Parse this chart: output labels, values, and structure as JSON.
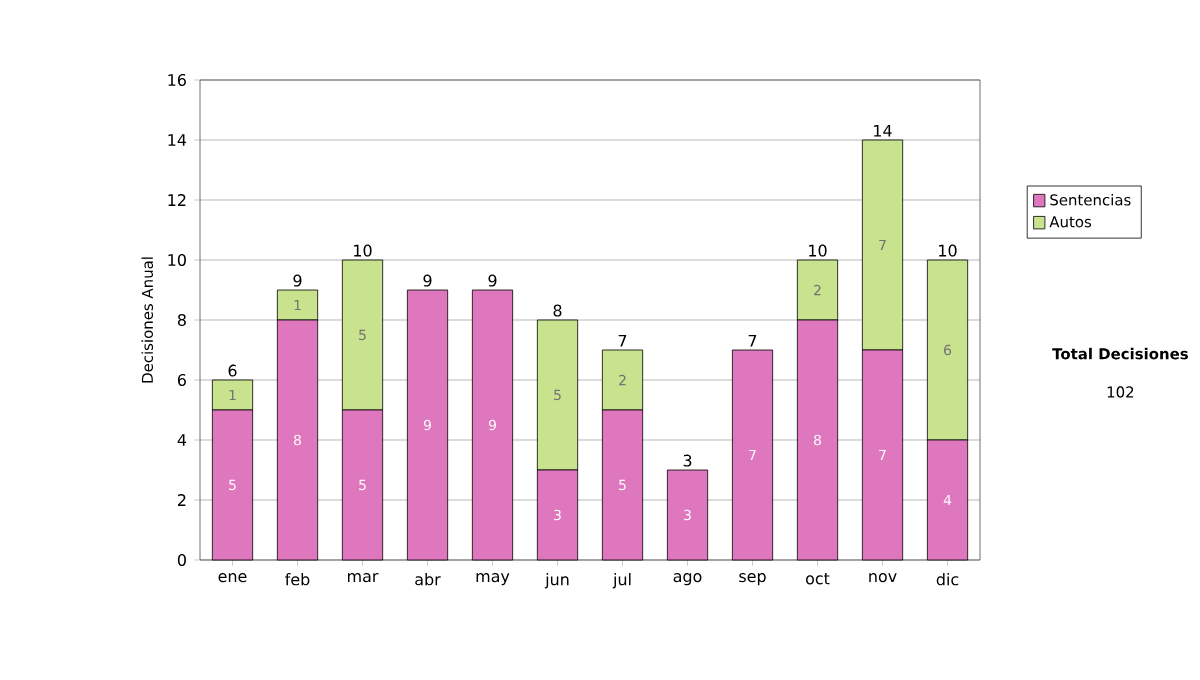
{
  "chart_data": {
    "type": "bar",
    "stacked": true,
    "ylabel": "Decisiones Anual",
    "categories": [
      "ene",
      "feb",
      "mar",
      "abr",
      "may",
      "jun",
      "jul",
      "ago",
      "sep",
      "oct",
      "nov",
      "dic"
    ],
    "series": [
      {
        "name": "Sentencias",
        "color": "#df77be",
        "values": [
          5,
          8,
          5,
          9,
          9,
          3,
          5,
          3,
          7,
          8,
          7,
          4
        ],
        "value_labels": [
          "5",
          "8",
          "5",
          "9",
          "9",
          "3",
          "5",
          "3",
          "7",
          "8",
          "7",
          "4"
        ]
      },
      {
        "name": "Autos",
        "color": "#c8e28e",
        "values": [
          1,
          1,
          5,
          0,
          0,
          5,
          2,
          0,
          0,
          2,
          7,
          6
        ],
        "value_labels": [
          "1",
          "1",
          "5",
          null,
          null,
          "5",
          "2",
          null,
          null,
          "2",
          "7",
          "6"
        ]
      }
    ],
    "totals": [
      "6",
      "9",
      "10",
      "9",
      "9",
      "8",
      "7",
      "3",
      "7",
      "10",
      "14",
      "10"
    ],
    "ylim": [
      0,
      16
    ],
    "yticks": [
      0,
      2,
      4,
      6,
      8,
      10,
      12,
      14,
      16
    ],
    "grid": "y",
    "legend": "right",
    "annotations": [
      "Total Decisiones",
      "102"
    ]
  }
}
